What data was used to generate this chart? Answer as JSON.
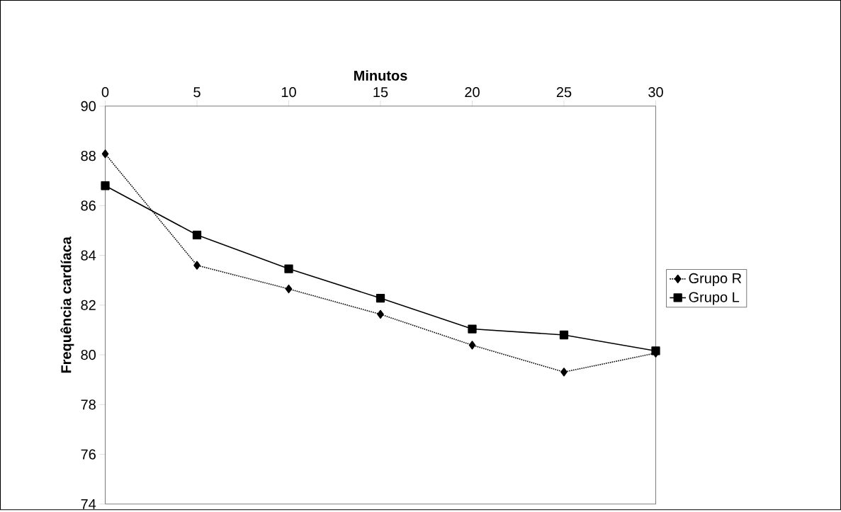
{
  "chart_data": {
    "type": "line",
    "xlabel": "Minutos",
    "ylabel": "Frequência cardíaca",
    "x": [
      0,
      5,
      10,
      15,
      20,
      25,
      30
    ],
    "series": [
      {
        "name": "Grupo R",
        "color": "#000000",
        "marker": "diamond",
        "line_style": "dotted",
        "values": [
          88.08,
          83.6,
          82.65,
          81.63,
          80.39,
          79.31,
          80.07
        ]
      },
      {
        "name": "Grupo L",
        "color": "#000000",
        "marker": "square",
        "line_style": "solid",
        "values": [
          86.8,
          84.82,
          83.46,
          82.28,
          81.04,
          80.8,
          80.16
        ]
      }
    ],
    "xlim": [
      0,
      30
    ],
    "xticks": [
      0,
      5,
      10,
      15,
      20,
      25,
      30
    ],
    "ylim": [
      74,
      90
    ],
    "yticks": [
      74,
      76,
      78,
      80,
      82,
      84,
      86,
      88,
      90
    ],
    "grid": false,
    "legend": "right"
  }
}
